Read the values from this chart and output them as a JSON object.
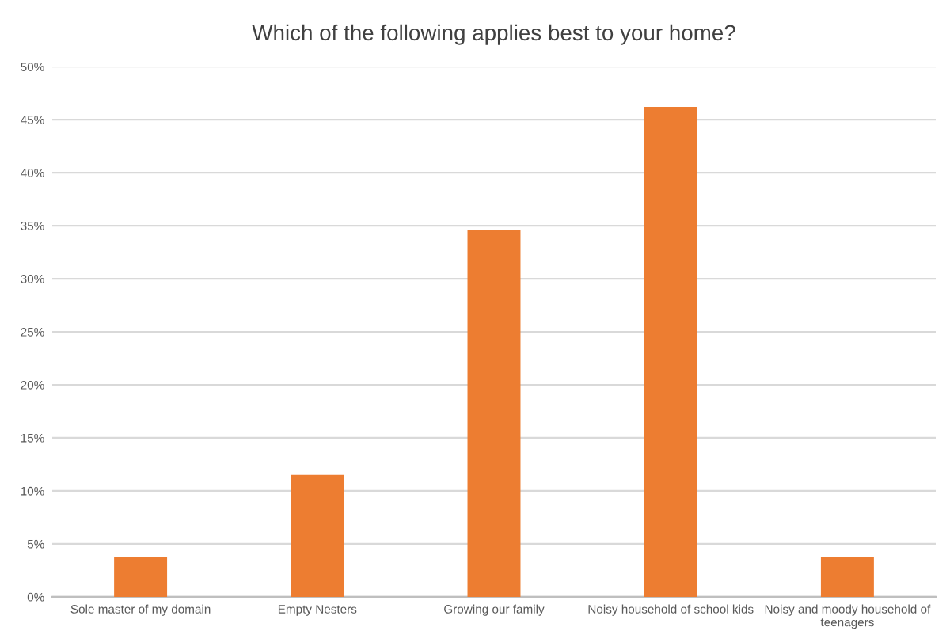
{
  "chart_data": {
    "type": "bar",
    "title": "Which of the following applies best to your home?",
    "categories": [
      "Sole master of my domain",
      "Empty Nesters",
      "Growing our family",
      "Noisy household of school kids",
      "Noisy and moody household of teenagers"
    ],
    "values": [
      3.8,
      11.5,
      34.6,
      46.2,
      3.8
    ],
    "color": "#ed7d31",
    "ylim": [
      0,
      50
    ],
    "yticks": [
      {
        "value": 0,
        "label": "0%"
      },
      {
        "value": 5,
        "label": "5%"
      },
      {
        "value": 10,
        "label": "10%"
      },
      {
        "value": 15,
        "label": "15%"
      },
      {
        "value": 20,
        "label": "20%"
      },
      {
        "value": 25,
        "label": "25%"
      },
      {
        "value": 30,
        "label": "30%"
      },
      {
        "value": 35,
        "label": "35%"
      },
      {
        "value": 40,
        "label": "40%"
      },
      {
        "value": 45,
        "label": "45%"
      },
      {
        "value": 50,
        "label": "50%"
      }
    ],
    "grid": "y"
  }
}
